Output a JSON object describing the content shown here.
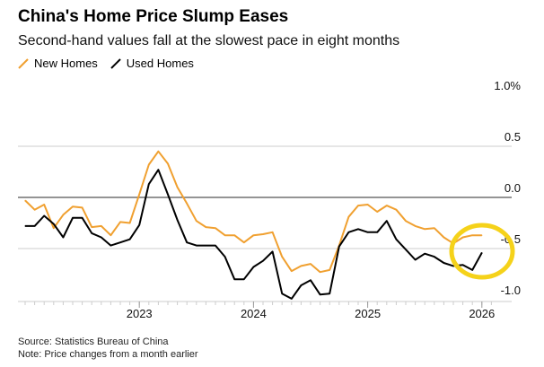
{
  "title": "China's Home Price Slump Eases",
  "subtitle": "Second-hand values fall at the slowest pace in eight months",
  "source": "Source: Statistics Bureau of China",
  "note": "Note: Price changes from a month earlier",
  "chart_data": {
    "type": "line",
    "title": "China's Home Price Slump Eases",
    "xlabel": "",
    "ylabel": "",
    "x_start": "2022-01",
    "x_end": "2026-01",
    "frequency": "monthly",
    "ylim": [
      -1.0,
      1.0
    ],
    "y_ticks": [
      {
        "v": 1.0,
        "label": "1.0%"
      },
      {
        "v": 0.5,
        "label": "0.5"
      },
      {
        "v": 0.0,
        "label": "0.0"
      },
      {
        "v": -0.5,
        "label": "-0.5"
      },
      {
        "v": -1.0,
        "label": "-1.0"
      }
    ],
    "x_ticks": [
      {
        "m": 12,
        "label": "2023"
      },
      {
        "m": 24,
        "label": "2024"
      },
      {
        "m": 36,
        "label": "2025"
      },
      {
        "m": 48,
        "label": "2026"
      }
    ],
    "legend_position": "top-left",
    "series": [
      {
        "name": "New Homes",
        "color": "#f0a030",
        "values": [
          -0.03,
          -0.12,
          -0.07,
          -0.3,
          -0.17,
          -0.09,
          -0.1,
          -0.29,
          -0.28,
          -0.37,
          -0.24,
          -0.25,
          0.03,
          0.32,
          0.45,
          0.33,
          0.1,
          -0.06,
          -0.23,
          -0.29,
          -0.3,
          -0.37,
          -0.37,
          -0.44,
          -0.37,
          -0.36,
          -0.34,
          -0.58,
          -0.72,
          -0.67,
          -0.65,
          -0.73,
          -0.71,
          -0.47,
          -0.19,
          -0.08,
          -0.07,
          -0.14,
          -0.08,
          -0.12,
          -0.23,
          -0.28,
          -0.31,
          -0.3,
          -0.39,
          -0.45,
          -0.39,
          -0.37,
          -0.37
        ]
      },
      {
        "name": "Used Homes",
        "color": "#000000",
        "values": [
          -0.28,
          -0.28,
          -0.18,
          -0.26,
          -0.39,
          -0.2,
          -0.2,
          -0.35,
          -0.39,
          -0.47,
          -0.44,
          -0.41,
          -0.27,
          0.13,
          0.27,
          0.03,
          -0.22,
          -0.44,
          -0.47,
          -0.47,
          -0.47,
          -0.58,
          -0.8,
          -0.8,
          -0.68,
          -0.62,
          -0.53,
          -0.94,
          -0.99,
          -0.86,
          -0.81,
          -0.95,
          -0.94,
          -0.48,
          -0.34,
          -0.31,
          -0.34,
          -0.34,
          -0.23,
          -0.41,
          -0.51,
          -0.61,
          -0.55,
          -0.58,
          -0.64,
          -0.67,
          -0.66,
          -0.71,
          -0.54
        ]
      }
    ],
    "highlight_color": "#f5d21a"
  }
}
